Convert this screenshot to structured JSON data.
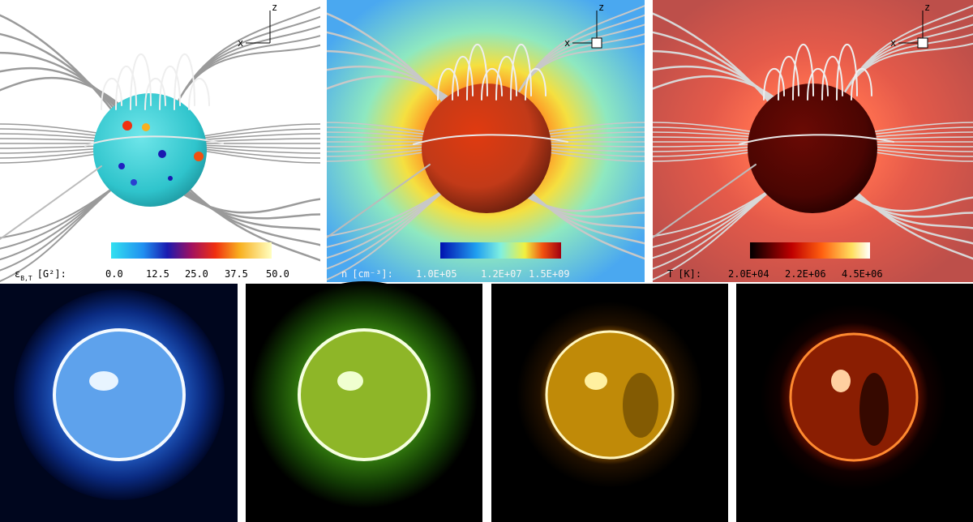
{
  "top_panels": [
    {
      "axes": {
        "x": "x",
        "z": "z"
      },
      "colorbar": {
        "symbol": "ε",
        "subscript": "B,T",
        "unit": "[G²]:",
        "ticks": [
          "0.0",
          "12.5",
          "25.0",
          "37.5",
          "50.0"
        ]
      }
    },
    {
      "axes": {
        "x": "x",
        "z": "z"
      },
      "colorbar": {
        "symbol": "n",
        "unit": "[cm⁻³]:",
        "ticks": [
          "1.0E+05",
          "1.2E+07",
          "1.5E+09"
        ]
      }
    },
    {
      "axes": {
        "x": "x",
        "z": "z"
      },
      "colorbar": {
        "symbol": "T",
        "unit": "[K]:",
        "ticks": [
          "2.0E+04",
          "2.2E+06",
          "4.5E+06"
        ]
      }
    }
  ]
}
